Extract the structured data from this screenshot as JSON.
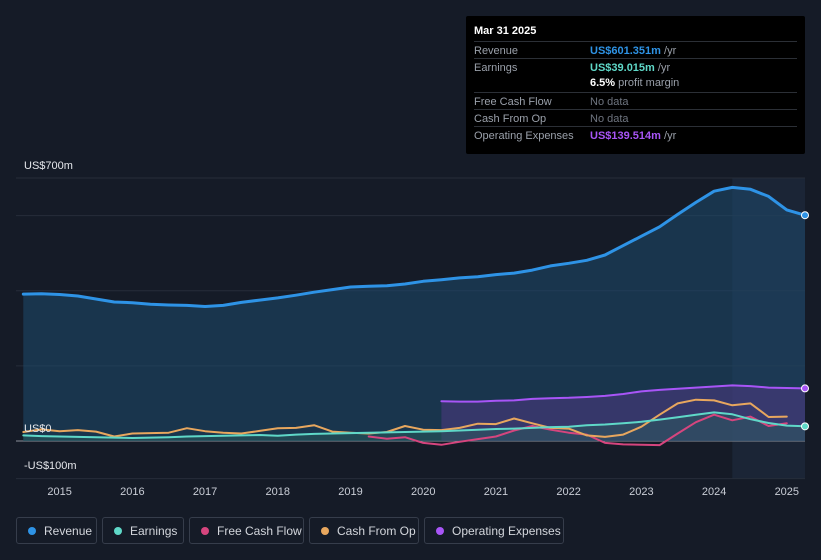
{
  "tooltip": {
    "date": "Mar 31 2025",
    "rows": [
      {
        "label": "Revenue",
        "value": "US$601.351m",
        "unit": "/yr",
        "color": "#2e93e6"
      },
      {
        "label": "Earnings",
        "value": "US$39.015m",
        "unit": "/yr",
        "color": "#5fd8c8"
      },
      {
        "label": "Free Cash Flow",
        "value": "No data",
        "unit": "",
        "color": "#6f7580"
      },
      {
        "label": "Cash From Op",
        "value": "No data",
        "unit": "",
        "color": "#6f7580"
      },
      {
        "label": "Operating Expenses",
        "value": "US$139.514m",
        "unit": "/yr",
        "color": "#a855f7"
      }
    ],
    "margin_value": "6.5%",
    "margin_label": "profit margin"
  },
  "legend": [
    {
      "label": "Revenue",
      "color": "#2e93e6"
    },
    {
      "label": "Earnings",
      "color": "#5fd8c8"
    },
    {
      "label": "Free Cash Flow",
      "color": "#d6457e"
    },
    {
      "label": "Cash From Op",
      "color": "#e8a75e"
    },
    {
      "label": "Operating Expenses",
      "color": "#a855f7"
    }
  ],
  "chart_data": {
    "type": "line",
    "title": "",
    "xlabel": "",
    "ylabel": "",
    "y_labels": {
      "top": "US$700m",
      "zero": "US$0",
      "bottom": "-US$100m"
    },
    "ylim": [
      -100,
      700
    ],
    "xlim": [
      2014.5,
      2025.25
    ],
    "x_ticks": [
      "2015",
      "2016",
      "2017",
      "2018",
      "2019",
      "2020",
      "2021",
      "2022",
      "2023",
      "2024",
      "2025"
    ],
    "forecast_start": 2024.25,
    "series": [
      {
        "name": "Revenue",
        "color": "#2e93e6",
        "x": [
          2014.5,
          2014.75,
          2015.0,
          2015.25,
          2015.5,
          2015.75,
          2016.0,
          2016.25,
          2016.5,
          2016.75,
          2017.0,
          2017.25,
          2017.5,
          2017.75,
          2018.0,
          2018.25,
          2018.5,
          2018.75,
          2019.0,
          2019.25,
          2019.5,
          2019.75,
          2020.0,
          2020.25,
          2020.5,
          2020.75,
          2021.0,
          2021.25,
          2021.5,
          2021.75,
          2022.0,
          2022.25,
          2022.5,
          2022.75,
          2023.0,
          2023.25,
          2023.5,
          2023.75,
          2024.0,
          2024.25,
          2024.5,
          2024.75,
          2025.0,
          2025.25
        ],
        "values": [
          391,
          392,
          390,
          386,
          378,
          370,
          368,
          364,
          362,
          361,
          358,
          361,
          369,
          375,
          381,
          388,
          396,
          403,
          410,
          412,
          413,
          418,
          425,
          429,
          434,
          437,
          443,
          447,
          455,
          466,
          473,
          481,
          495,
          520,
          545,
          570,
          603,
          635,
          665,
          675,
          670,
          651,
          615,
          601
        ]
      },
      {
        "name": "Earnings",
        "color": "#5fd8c8",
        "x": [
          2014.5,
          2014.75,
          2015.0,
          2015.25,
          2015.5,
          2015.75,
          2016.0,
          2016.25,
          2016.5,
          2016.75,
          2017.0,
          2017.25,
          2017.5,
          2017.75,
          2018.0,
          2018.25,
          2018.5,
          2018.75,
          2019.0,
          2019.25,
          2019.5,
          2019.75,
          2020.0,
          2020.25,
          2020.5,
          2020.75,
          2021.0,
          2021.25,
          2021.5,
          2021.75,
          2022.0,
          2022.25,
          2022.5,
          2022.75,
          2023.0,
          2023.25,
          2023.5,
          2023.75,
          2024.0,
          2024.25,
          2024.5,
          2024.75,
          2025.0,
          2025.25
        ],
        "values": [
          15,
          13,
          12,
          11,
          10,
          9,
          8,
          9,
          10,
          12,
          13,
          14,
          15,
          16,
          14,
          17,
          19,
          20,
          21,
          22,
          23,
          24,
          25,
          26,
          28,
          30,
          32,
          33,
          35,
          37,
          38,
          42,
          44,
          47,
          51,
          57,
          63,
          70,
          76,
          71,
          58,
          48,
          41,
          39
        ]
      },
      {
        "name": "Free Cash Flow",
        "color": "#d6457e",
        "x": [
          2019.25,
          2019.5,
          2019.75,
          2020.0,
          2020.25,
          2020.5,
          2020.75,
          2021.0,
          2021.25,
          2021.5,
          2021.75,
          2022.0,
          2022.25,
          2022.5,
          2022.75,
          2023.0,
          2023.25,
          2023.5,
          2023.75,
          2024.0,
          2024.25,
          2024.5,
          2024.75,
          2025.0
        ],
        "values": [
          12,
          6,
          10,
          -5,
          -10,
          -2,
          5,
          12,
          28,
          40,
          30,
          22,
          17,
          -5,
          -9,
          -10,
          -11,
          20,
          50,
          70,
          55,
          65,
          40,
          47
        ]
      },
      {
        "name": "Cash From Op",
        "color": "#e8a75e",
        "x": [
          2014.5,
          2014.75,
          2015.0,
          2015.25,
          2015.5,
          2015.75,
          2016.0,
          2016.25,
          2016.5,
          2016.75,
          2017.0,
          2017.25,
          2017.5,
          2017.75,
          2018.0,
          2018.25,
          2018.5,
          2018.75,
          2019.0,
          2019.25,
          2019.5,
          2019.75,
          2020.0,
          2020.25,
          2020.5,
          2020.75,
          2021.0,
          2021.25,
          2021.5,
          2021.75,
          2022.0,
          2022.25,
          2022.5,
          2022.75,
          2023.0,
          2023.25,
          2023.5,
          2023.75,
          2024.0,
          2024.25,
          2024.5,
          2024.75,
          2025.0
        ],
        "values": [
          24,
          31,
          26,
          29,
          25,
          12,
          20,
          21,
          22,
          34,
          26,
          22,
          20,
          27,
          34,
          35,
          42,
          25,
          22,
          20,
          24,
          40,
          30,
          29,
          35,
          46,
          45,
          60,
          47,
          35,
          33,
          15,
          11,
          17,
          38,
          70,
          100,
          110,
          108,
          95,
          100,
          64,
          65
        ]
      },
      {
        "name": "Operating Expenses",
        "color": "#a855f7",
        "x": [
          2020.25,
          2020.5,
          2020.75,
          2021.0,
          2021.25,
          2021.5,
          2021.75,
          2022.0,
          2022.25,
          2022.5,
          2022.75,
          2023.0,
          2023.25,
          2023.5,
          2023.75,
          2024.0,
          2024.25,
          2024.5,
          2024.75,
          2025.0,
          2025.25
        ],
        "values": [
          106,
          105,
          105,
          107,
          108,
          112,
          114,
          115,
          117,
          120,
          125,
          132,
          136,
          139,
          142,
          145,
          148,
          146,
          142,
          141,
          140
        ]
      }
    ]
  }
}
